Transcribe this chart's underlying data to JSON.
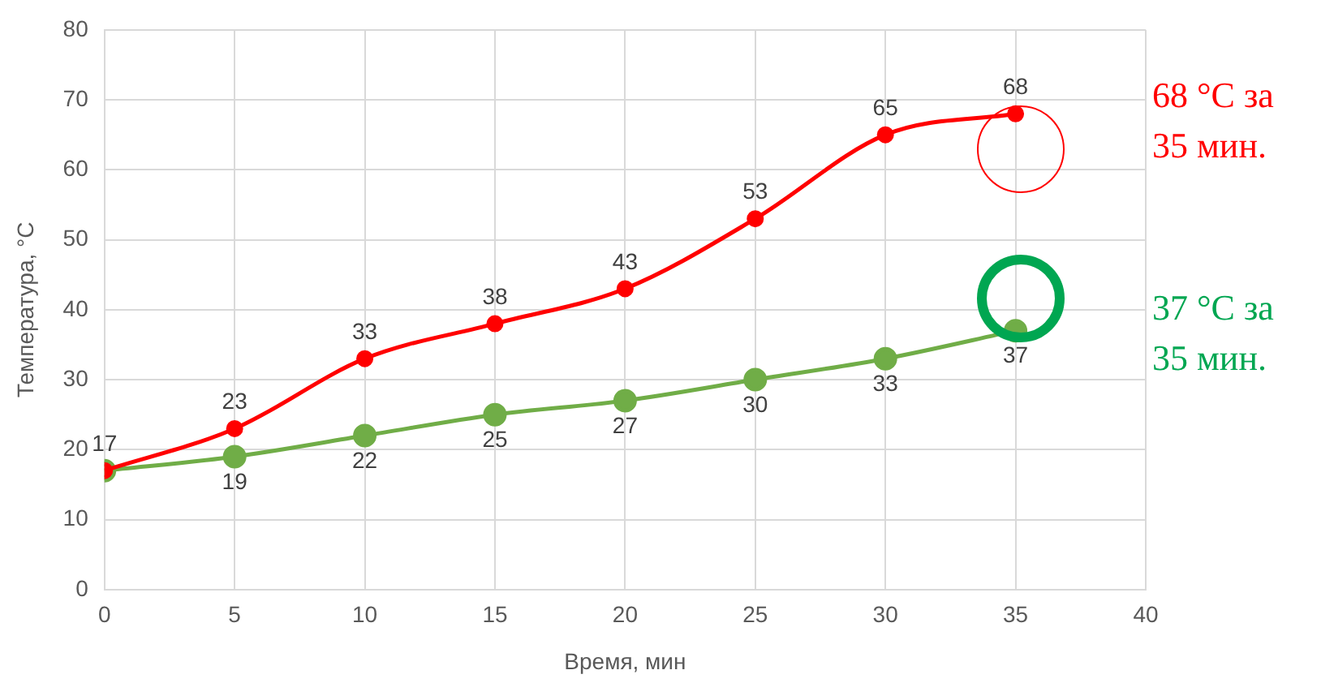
{
  "chart_data": {
    "type": "line",
    "xlabel": "Время, мин",
    "ylabel": "Температура, °C",
    "x": [
      0,
      5,
      10,
      15,
      20,
      25,
      30,
      35
    ],
    "series": [
      {
        "color": "#ff0000",
        "values": [
          17,
          23,
          33,
          38,
          43,
          53,
          65,
          68
        ],
        "value_labels": [
          "17",
          "23",
          "33",
          "38",
          "43",
          "53",
          "65",
          "68"
        ]
      },
      {
        "color": "#70ad47",
        "values": [
          17,
          19,
          22,
          25,
          27,
          30,
          33,
          37
        ],
        "value_labels": [
          null,
          "19",
          "22",
          "25",
          "27",
          "30",
          "33",
          "37"
        ]
      }
    ],
    "xlim": [
      0,
      40
    ],
    "xticks": [
      0,
      5,
      10,
      15,
      20,
      25,
      30,
      35,
      40
    ],
    "ylim": [
      0,
      80
    ],
    "yticks": [
      0,
      10,
      20,
      30,
      40,
      50,
      60,
      70,
      80
    ],
    "grid": true,
    "legend": false,
    "marker": "circle",
    "line_style": "solid",
    "annotations": [
      "68 °C за\n35 мин.",
      "37 °C за\n35 мин."
    ]
  }
}
